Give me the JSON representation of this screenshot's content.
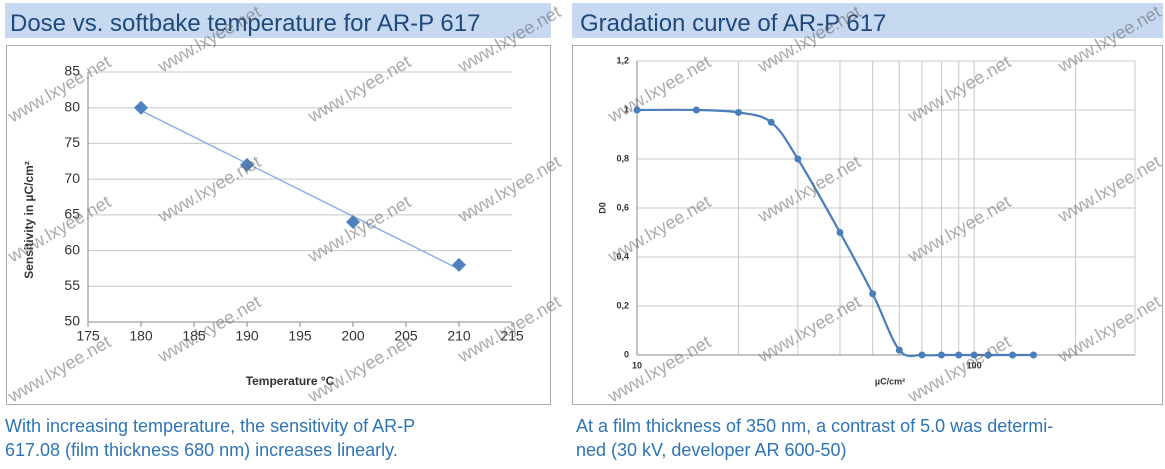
{
  "watermark": "www.lxyee.net",
  "chart_data": [
    {
      "type": "scatter",
      "title": "Dose vs. softbake temperature for AR-P 617",
      "x": [
        180,
        190,
        200,
        210
      ],
      "values": [
        80,
        72,
        64,
        58
      ],
      "color": "#4f81bd",
      "trendline": true,
      "trendline_color": "#8db4e2",
      "xlim": [
        175,
        215
      ],
      "xticks": [
        175,
        180,
        185,
        190,
        195,
        200,
        205,
        210,
        215
      ],
      "ylim": [
        50,
        85
      ],
      "yticks": [
        50,
        55,
        60,
        65,
        70,
        75,
        80,
        85
      ],
      "grid": true,
      "xlabel": "Temperature °C",
      "ylabel": "Sensitivity in µC/cm²",
      "caption": [
        "With increasing temperature, the sensitivity of AR-P",
        "617.08 (film thickness 680 nm) increases linearly."
      ]
    },
    {
      "type": "line",
      "title": "Gradation curve of AR-P 617",
      "x": [
        10,
        15,
        20,
        25,
        30,
        40,
        50,
        60,
        70,
        80,
        90,
        100,
        110,
        130,
        150
      ],
      "values": [
        1,
        1,
        0.99,
        0.95,
        0.8,
        0.5,
        0.25,
        0.02,
        0,
        0,
        0,
        0,
        0,
        0,
        0
      ],
      "color": "#4a7ebb",
      "log_x": true,
      "xlim": [
        10,
        300
      ],
      "xticks": [
        10,
        100
      ],
      "x_minor_gridlines": [
        20,
        30,
        40,
        50,
        60,
        70,
        80,
        90,
        200,
        300
      ],
      "ylim": [
        0,
        1.2
      ],
      "yticks": [
        0,
        {
          "value": 0.2,
          "label": "0,2"
        },
        {
          "value": 0.4,
          "label": "0,4"
        },
        {
          "value": 0.6,
          "label": "0,6"
        },
        {
          "value": 0.8,
          "label": "0,8"
        },
        1,
        {
          "value": 1.2,
          "label": "1,2"
        }
      ],
      "grid": true,
      "xlabel": "µC/cm²",
      "ylabel": "D0",
      "caption": [
        "At a film thickness of 350 nm, a contrast of 5.0 was determi-",
        "ned (30 kV, developer AR 600-50)"
      ]
    }
  ]
}
